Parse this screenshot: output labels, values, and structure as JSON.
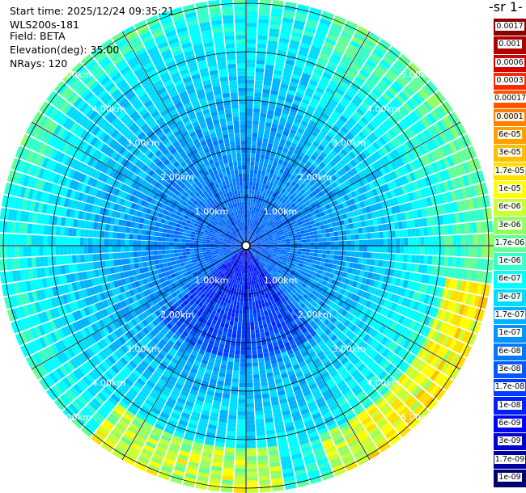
{
  "info": {
    "start_time": "Start time: 2025/12/24 09:35:21",
    "instrument": "WLS200s-181",
    "field": "Field: BETA",
    "elevation": "Elevation(deg): 35.00",
    "nrays": "NRays: 120"
  },
  "colorbar": {
    "title": "-1 sr-",
    "labels": [
      "0.0017",
      "0.001",
      "0.0006",
      "0.0003",
      "0.00017",
      "0.0001",
      "6e-05",
      "3e-05",
      "1.7e-05",
      "1e-05",
      "6e-06",
      "3e-06",
      "1.7e-06",
      "1e-06",
      "6e-07",
      "3e-07",
      "1.7e-07",
      "1e-07",
      "6e-08",
      "3e-08",
      "1.7e-08",
      "1e-08",
      "6e-09",
      "3e-09",
      "1.7e-09",
      "1e-09"
    ],
    "colors": [
      "#8b0000",
      "#b00000",
      "#d40000",
      "#ff2a00",
      "#ff5500",
      "#ff8000",
      "#ff9f00",
      "#ffbf00",
      "#ffdf00",
      "#ffff00",
      "#c8ff37",
      "#96ff64",
      "#64ff96",
      "#37ffc8",
      "#00ffff",
      "#00dcff",
      "#00b4ff",
      "#0096ff",
      "#0078ff",
      "#005aff",
      "#003cff",
      "#0020ff",
      "#0000ff",
      "#0000d0",
      "#0000a0",
      "#000070"
    ]
  },
  "chart_data": {
    "type": "heatmap",
    "subtype": "polar-ppi",
    "range_labels": [
      "1.00km",
      "2.00km",
      "3.00km",
      "4.00km",
      "5.00km"
    ],
    "range_rings_km": [
      1,
      2,
      3,
      4,
      5
    ],
    "max_range_km": 5.1,
    "rays": 120,
    "color_scale": "log",
    "value_range": [
      1e-09,
      0.0017
    ],
    "field": "BETA",
    "field_pattern": "log10 backscatter about -7 near the radar (dark blue, 1e-08 to 1e-07), rising to about -6 toward the outer edge (cyan, 6e-07 to 1e-06), with lighter green-yellow patches (about 1e-05) at the edge toward the lower-right and bottom",
    "spokes_deg": [
      0,
      30,
      60,
      90,
      120,
      150,
      180,
      210,
      240,
      270,
      300,
      330
    ]
  }
}
